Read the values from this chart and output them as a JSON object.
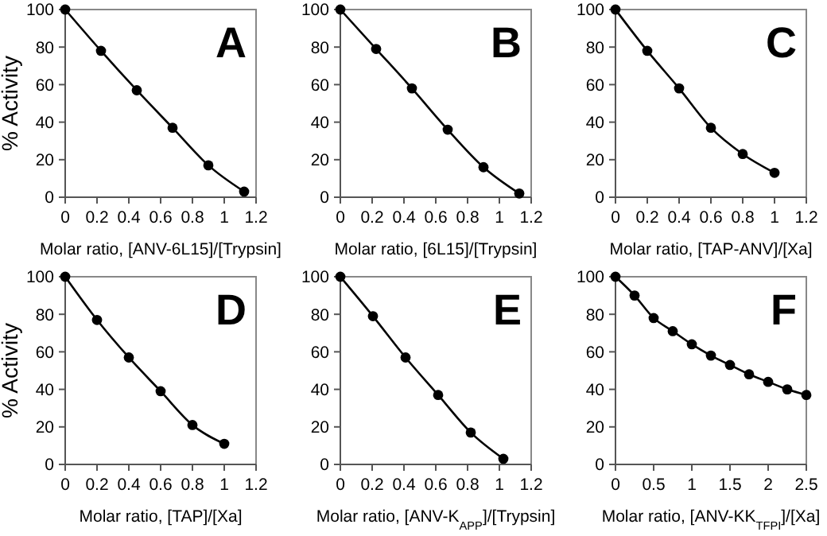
{
  "chart_data": [
    {
      "type": "line",
      "title": "A",
      "xlabel": "Molar ratio, [ANV-6L15]/[Trypsin]",
      "ylabel": "% Activity",
      "x": [
        0,
        0.225,
        0.45,
        0.675,
        0.9,
        1.125
      ],
      "series": [
        {
          "color": "#000000",
          "values": [
            100,
            78,
            57,
            37,
            17,
            3
          ]
        }
      ],
      "xlim": [
        0,
        1.2
      ],
      "xticks": [
        0,
        0.2,
        0.4,
        0.6,
        0.8,
        1,
        1.2
      ],
      "ylim": [
        0,
        100
      ],
      "yticks": [
        0,
        20,
        40,
        60,
        80,
        100
      ],
      "marker": "circle",
      "line_style": "solid"
    },
    {
      "type": "line",
      "title": "B",
      "xlabel": "Molar ratio, [6L15]/[Trypsin]",
      "x": [
        0,
        0.225,
        0.45,
        0.675,
        0.9,
        1.125
      ],
      "series": [
        {
          "color": "#000000",
          "values": [
            100,
            79,
            58,
            36,
            16,
            2
          ]
        }
      ],
      "xlim": [
        0,
        1.2
      ],
      "xticks": [
        0,
        0.2,
        0.4,
        0.6,
        0.8,
        1,
        1.2
      ],
      "ylim": [
        0,
        100
      ],
      "yticks": [
        0,
        20,
        40,
        60,
        80,
        100
      ],
      "marker": "circle",
      "line_style": "solid"
    },
    {
      "type": "line",
      "title": "C",
      "xlabel": "Molar ratio, [TAP-ANV]/[Xa]",
      "x": [
        0,
        0.2,
        0.4,
        0.6,
        0.8,
        1
      ],
      "series": [
        {
          "color": "#000000",
          "values": [
            100,
            78,
            58,
            37,
            23,
            13
          ]
        }
      ],
      "xlim": [
        0,
        1.2
      ],
      "xticks": [
        0,
        0.2,
        0.4,
        0.6,
        0.8,
        1,
        1.2
      ],
      "ylim": [
        0,
        100
      ],
      "yticks": [
        0,
        20,
        40,
        60,
        80,
        100
      ],
      "marker": "circle",
      "line_style": "solid"
    },
    {
      "type": "line",
      "title": "D",
      "xlabel": "Molar ratio, [TAP]/[Xa]",
      "ylabel": "% Activity",
      "x": [
        0,
        0.2,
        0.4,
        0.6,
        0.8,
        1
      ],
      "series": [
        {
          "color": "#000000",
          "values": [
            100,
            77,
            57,
            39,
            21,
            11
          ]
        }
      ],
      "xlim": [
        0,
        1.2
      ],
      "xticks": [
        0,
        0.2,
        0.4,
        0.6,
        0.8,
        1,
        1.2
      ],
      "ylim": [
        0,
        100
      ],
      "yticks": [
        0,
        20,
        40,
        60,
        80,
        100
      ],
      "marker": "circle",
      "line_style": "solid"
    },
    {
      "type": "line",
      "title": "E",
      "xlabel": "Molar ratio, [ANV-K$_{APP}$]/[Trypsin]",
      "x": [
        0,
        0.205,
        0.41,
        0.615,
        0.82,
        1.025
      ],
      "series": [
        {
          "color": "#000000",
          "values": [
            100,
            79,
            57,
            37,
            17,
            3
          ]
        }
      ],
      "xlim": [
        0,
        1.2
      ],
      "xticks": [
        0,
        0.2,
        0.4,
        0.6,
        0.8,
        1,
        1.2
      ],
      "ylim": [
        0,
        100
      ],
      "yticks": [
        0,
        20,
        40,
        60,
        80,
        100
      ],
      "marker": "circle",
      "line_style": "solid"
    },
    {
      "type": "line",
      "title": "F",
      "xlabel": "Molar ratio, [ANV-KK$_{TFPI}$]/[Xa]",
      "x": [
        0,
        0.25,
        0.5,
        0.75,
        1,
        1.25,
        1.5,
        1.75,
        2,
        2.25,
        2.5
      ],
      "series": [
        {
          "color": "#000000",
          "values": [
            100,
            90,
            78,
            71,
            64,
            58,
            53,
            48,
            44,
            40,
            37
          ]
        }
      ],
      "xlim": [
        0,
        2.5
      ],
      "xticks": [
        0,
        0.5,
        1,
        1.5,
        2,
        2.5
      ],
      "ylim": [
        0,
        100
      ],
      "yticks": [
        0,
        20,
        40,
        60,
        80,
        100
      ],
      "marker": "circle",
      "line_style": "solid"
    }
  ]
}
